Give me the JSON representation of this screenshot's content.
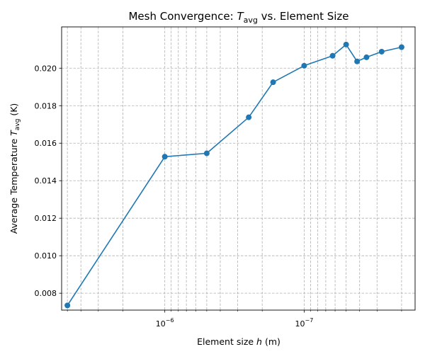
{
  "chart_data": {
    "type": "line",
    "title": {
      "prefix": "Mesh Convergence: ",
      "symbol": "T",
      "subscript": "avg",
      "suffix": " vs. Element Size"
    },
    "xlabel": {
      "prefix": "Element size ",
      "symbol": "h",
      "suffix": " (m)"
    },
    "ylabel": {
      "prefix": "Average Temperature ",
      "symbol": "T",
      "subscript": "avg",
      "suffix": " (K)"
    },
    "x_scale": "log",
    "x_axis_direction": "decreasing-left-to-right",
    "x_major_ticks": [
      {
        "value": 1e-06,
        "base": "10",
        "exponent": "−6"
      },
      {
        "value": 1e-07,
        "base": "10",
        "exponent": "−7"
      }
    ],
    "xlim": [
      5.5e-06,
      1.6e-08
    ],
    "ylim": [
      0.0071,
      0.0222
    ],
    "y_ticks": [
      "0.008",
      "0.010",
      "0.012",
      "0.014",
      "0.016",
      "0.018",
      "0.020"
    ],
    "grid": true,
    "grid_style": "dashed",
    "series": [
      {
        "color": "#1f77b4",
        "marker": "circle",
        "points": [
          {
            "x": 5e-06,
            "y": 0.00735
          },
          {
            "x": 1e-06,
            "y": 0.01528
          },
          {
            "x": 5e-07,
            "y": 0.01546
          },
          {
            "x": 2.5e-07,
            "y": 0.01738
          },
          {
            "x": 1.67e-07,
            "y": 0.01925
          },
          {
            "x": 1e-07,
            "y": 0.02013
          },
          {
            "x": 6.25e-08,
            "y": 0.02066
          },
          {
            "x": 5e-08,
            "y": 0.02126
          },
          {
            "x": 4.17e-08,
            "y": 0.02036
          },
          {
            "x": 3.57e-08,
            "y": 0.02058
          },
          {
            "x": 2.78e-08,
            "y": 0.02088
          },
          {
            "x": 2e-08,
            "y": 0.02112
          }
        ]
      }
    ]
  }
}
